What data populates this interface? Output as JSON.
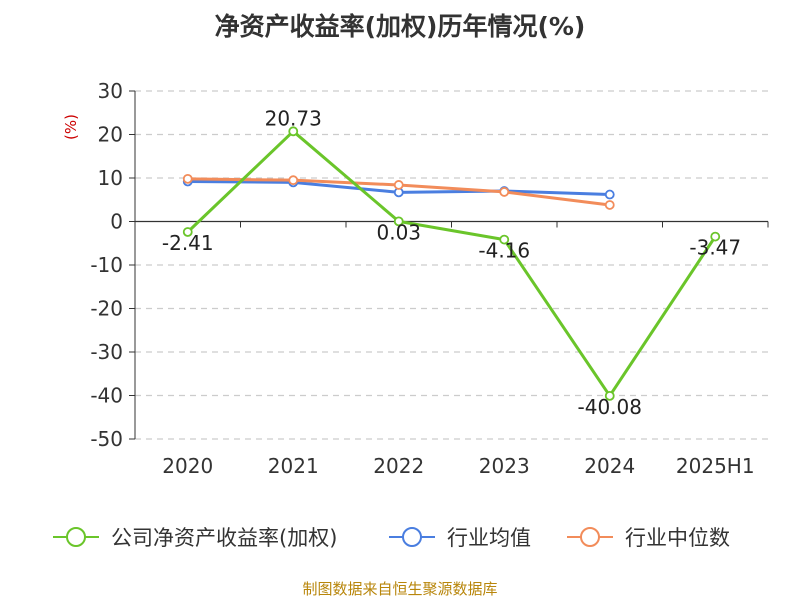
{
  "chart_data": {
    "type": "line",
    "title": "净资产收益率(加权)历年情况(%)",
    "ylabel": "(%)",
    "xlabel": "",
    "categories": [
      "2020",
      "2021",
      "2022",
      "2023",
      "2024",
      "2025H1"
    ],
    "ylim": [
      -50,
      30
    ],
    "yticks": [
      30,
      20,
      10,
      0,
      -10,
      -20,
      -30,
      -40,
      -50
    ],
    "grid": "horizontal-dashed",
    "legend_position": "bottom",
    "series": [
      {
        "name": "公司净资产收益率(加权)",
        "color": "#6ac52a",
        "values": [
          -2.41,
          20.73,
          0.03,
          -4.16,
          -40.08,
          -3.47
        ],
        "labels": [
          "-2.41",
          "20.73",
          "0.03",
          "-4.16",
          "-40.08",
          "-3.47"
        ]
      },
      {
        "name": "行业均值",
        "color": "#4a7ee0",
        "values": [
          9.2,
          9.0,
          6.7,
          7.0,
          6.2,
          null
        ]
      },
      {
        "name": "行业中位数",
        "color": "#f28c5a",
        "values": [
          9.8,
          9.5,
          8.4,
          6.8,
          3.8,
          null
        ]
      }
    ]
  },
  "footer": {
    "source": "制图数据来自恒生聚源数据库"
  }
}
